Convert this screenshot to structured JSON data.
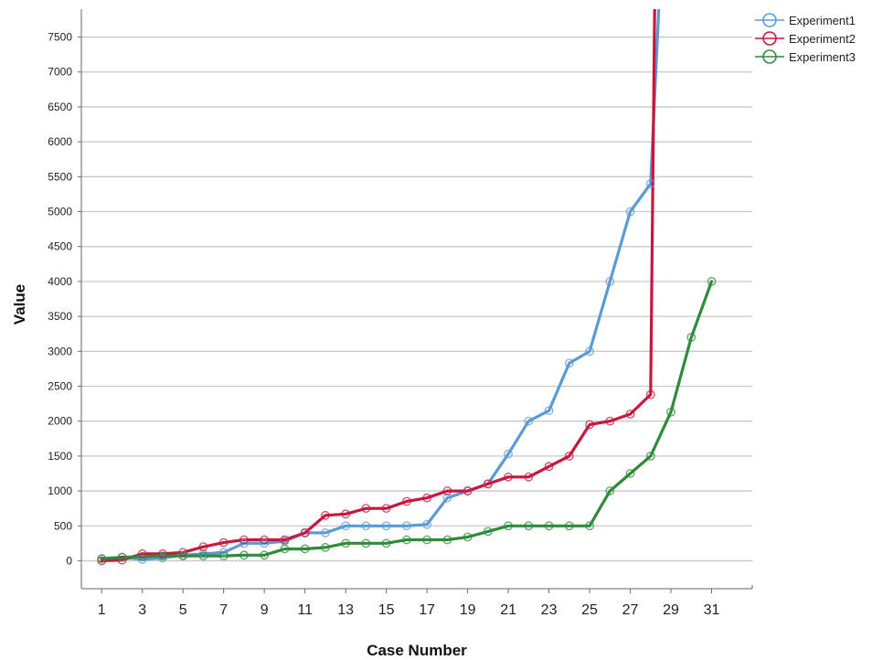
{
  "chart_data": {
    "type": "line",
    "xlabel": "Case Number",
    "ylabel": "Value",
    "xlim": [
      0,
      33
    ],
    "ylim": [
      -400,
      7900
    ],
    "x_ticks": [
      1,
      3,
      5,
      7,
      9,
      11,
      13,
      15,
      17,
      19,
      21,
      23,
      25,
      27,
      29,
      31
    ],
    "y_ticks": [
      0,
      500,
      1000,
      1500,
      2000,
      2500,
      3000,
      3500,
      4000,
      4500,
      5000,
      5500,
      6000,
      6500,
      7000,
      7500
    ],
    "grid": "horizontal",
    "legend_position": "top-right",
    "series": [
      {
        "name": "Experiment1",
        "color": "#5b9bd5",
        "x": [
          1,
          2,
          3,
          4,
          5,
          6,
          7,
          8,
          9,
          10,
          11,
          12,
          13,
          14,
          15,
          16,
          17,
          18,
          19,
          20,
          21,
          22,
          23,
          24,
          25,
          26,
          27,
          28,
          28.4
        ],
        "values": [
          30,
          50,
          20,
          40,
          80,
          100,
          120,
          250,
          250,
          280,
          400,
          400,
          500,
          500,
          500,
          500,
          520,
          900,
          1000,
          1100,
          1530,
          2000,
          2150,
          2830,
          3000,
          4000,
          5000,
          5400,
          7900
        ]
      },
      {
        "name": "Experiment2",
        "color": "#c8173f",
        "x": [
          1,
          2,
          3,
          4,
          5,
          6,
          7,
          8,
          9,
          10,
          11,
          12,
          13,
          14,
          15,
          16,
          17,
          18,
          19,
          20,
          21,
          22,
          23,
          24,
          25,
          26,
          27,
          28,
          28.2
        ],
        "values": [
          0,
          10,
          100,
          100,
          120,
          200,
          260,
          300,
          300,
          300,
          400,
          650,
          670,
          750,
          750,
          850,
          900,
          1000,
          1000,
          1100,
          1200,
          1200,
          1350,
          1500,
          1950,
          2000,
          2100,
          2380,
          7900
        ]
      },
      {
        "name": "Experiment3",
        "color": "#2e8b3a",
        "x": [
          1,
          2,
          3,
          4,
          5,
          6,
          7,
          8,
          9,
          10,
          11,
          12,
          13,
          14,
          15,
          16,
          17,
          18,
          19,
          20,
          21,
          22,
          23,
          24,
          25,
          26,
          27,
          28,
          29,
          30,
          31
        ],
        "values": [
          30,
          50,
          60,
          70,
          70,
          70,
          70,
          80,
          80,
          170,
          170,
          190,
          250,
          250,
          250,
          300,
          300,
          300,
          340,
          420,
          500,
          500,
          500,
          500,
          500,
          1000,
          1250,
          1500,
          2130,
          3200,
          4000
        ]
      }
    ]
  }
}
